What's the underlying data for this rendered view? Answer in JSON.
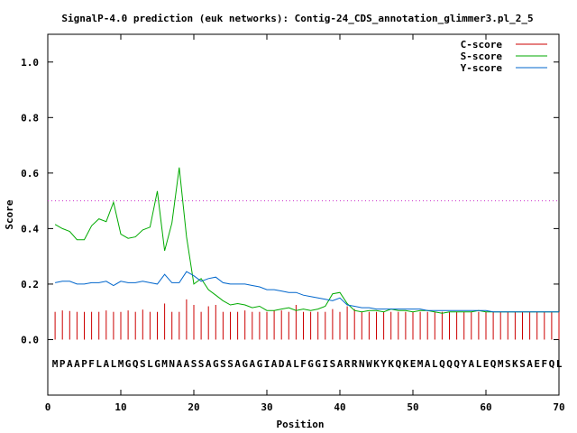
{
  "chart_data": {
    "type": "line",
    "title": "SignalP-4.0 prediction (euk networks): Contig-24_CDS_annotation_glimmer3.pl_2_5",
    "xlabel": "Position",
    "ylabel": "Score",
    "xlim": [
      0,
      70
    ],
    "ylim": [
      -0.2,
      1.1
    ],
    "x_ticks": [
      "0",
      "10",
      "20",
      "30",
      "40",
      "50",
      "60",
      "70"
    ],
    "y_ticks": [
      "0.0",
      "0.2",
      "0.4",
      "0.6",
      "0.8",
      "1.0"
    ],
    "x_tick_values": [
      0,
      10,
      20,
      30,
      40,
      50,
      60,
      70
    ],
    "y_tick_values": [
      0.0,
      0.2,
      0.4,
      0.6,
      0.8,
      1.0
    ],
    "legend_placement": "top-right",
    "threshold": 0.5,
    "threshold_color": "#cc33cc",
    "sequence": "MPAAPFLALMGQSLGMNAASSAGSSAGAGIADALFGGISARRNWKYKQKEMALQQQYALEQMSKSAEFQL",
    "series": [
      {
        "name": "C-score",
        "style": "impulse",
        "color": "#cc0000",
        "x": [
          1,
          2,
          3,
          4,
          5,
          6,
          7,
          8,
          9,
          10,
          11,
          12,
          13,
          14,
          15,
          16,
          17,
          18,
          19,
          20,
          21,
          22,
          23,
          24,
          25,
          26,
          27,
          28,
          29,
          30,
          31,
          32,
          33,
          34,
          35,
          36,
          37,
          38,
          39,
          40,
          41,
          42,
          43,
          44,
          45,
          46,
          47,
          48,
          49,
          50,
          51,
          52,
          53,
          54,
          55,
          56,
          57,
          58,
          59,
          60,
          61,
          62,
          63,
          64,
          65,
          66,
          67,
          68,
          69,
          70
        ],
        "values": [
          0.1,
          0.105,
          0.103,
          0.1,
          0.1,
          0.1,
          0.1,
          0.105,
          0.1,
          0.1,
          0.105,
          0.1,
          0.108,
          0.1,
          0.1,
          0.13,
          0.1,
          0.1,
          0.145,
          0.125,
          0.1,
          0.12,
          0.125,
          0.1,
          0.1,
          0.1,
          0.105,
          0.1,
          0.1,
          0.1,
          0.105,
          0.105,
          0.1,
          0.125,
          0.1,
          0.1,
          0.1,
          0.1,
          0.11,
          0.1,
          0.12,
          0.11,
          0.1,
          0.1,
          0.1,
          0.1,
          0.1,
          0.1,
          0.1,
          0.1,
          0.1,
          0.1,
          0.1,
          0.1,
          0.1,
          0.1,
          0.1,
          0.1,
          0.1,
          0.1,
          0.1,
          0.1,
          0.1,
          0.1,
          0.1,
          0.1,
          0.1,
          0.1,
          0.1,
          0.1
        ]
      },
      {
        "name": "S-score",
        "style": "line",
        "color": "#00aa00",
        "x": [
          1,
          2,
          3,
          4,
          5,
          6,
          7,
          8,
          9,
          10,
          11,
          12,
          13,
          14,
          15,
          16,
          17,
          18,
          19,
          20,
          21,
          22,
          23,
          24,
          25,
          26,
          27,
          28,
          29,
          30,
          31,
          32,
          33,
          34,
          35,
          36,
          37,
          38,
          39,
          40,
          41,
          42,
          43,
          44,
          45,
          46,
          47,
          48,
          49,
          50,
          51,
          52,
          53,
          54,
          55,
          56,
          57,
          58,
          59,
          60,
          61,
          62,
          63,
          64,
          65,
          66,
          67,
          68,
          69,
          70
        ],
        "values": [
          0.415,
          0.4,
          0.39,
          0.36,
          0.36,
          0.41,
          0.435,
          0.425,
          0.495,
          0.38,
          0.365,
          0.37,
          0.395,
          0.405,
          0.535,
          0.32,
          0.42,
          0.62,
          0.37,
          0.2,
          0.22,
          0.18,
          0.16,
          0.14,
          0.125,
          0.13,
          0.125,
          0.115,
          0.12,
          0.105,
          0.105,
          0.11,
          0.115,
          0.105,
          0.11,
          0.105,
          0.11,
          0.12,
          0.165,
          0.17,
          0.13,
          0.105,
          0.1,
          0.105,
          0.105,
          0.1,
          0.11,
          0.105,
          0.105,
          0.1,
          0.105,
          0.105,
          0.1,
          0.095,
          0.1,
          0.1,
          0.1,
          0.1,
          0.105,
          0.1,
          0.1,
          0.1,
          0.1,
          0.1,
          0.1,
          0.1,
          0.1,
          0.1,
          0.1,
          0.1
        ]
      },
      {
        "name": "Y-score",
        "style": "line",
        "color": "#0066cc",
        "x": [
          1,
          2,
          3,
          4,
          5,
          6,
          7,
          8,
          9,
          10,
          11,
          12,
          13,
          14,
          15,
          16,
          17,
          18,
          19,
          20,
          21,
          22,
          23,
          24,
          25,
          26,
          27,
          28,
          29,
          30,
          31,
          32,
          33,
          34,
          35,
          36,
          37,
          38,
          39,
          40,
          41,
          42,
          43,
          44,
          45,
          46,
          47,
          48,
          49,
          50,
          51,
          52,
          53,
          54,
          55,
          56,
          57,
          58,
          59,
          60,
          61,
          62,
          63,
          64,
          65,
          66,
          67,
          68,
          69,
          70
        ],
        "values": [
          0.205,
          0.21,
          0.21,
          0.2,
          0.2,
          0.205,
          0.205,
          0.21,
          0.195,
          0.21,
          0.205,
          0.205,
          0.21,
          0.205,
          0.2,
          0.235,
          0.205,
          0.205,
          0.245,
          0.23,
          0.21,
          0.22,
          0.225,
          0.205,
          0.2,
          0.2,
          0.2,
          0.195,
          0.19,
          0.18,
          0.18,
          0.175,
          0.17,
          0.17,
          0.16,
          0.155,
          0.15,
          0.145,
          0.14,
          0.15,
          0.125,
          0.12,
          0.115,
          0.115,
          0.11,
          0.11,
          0.11,
          0.11,
          0.11,
          0.11,
          0.11,
          0.105,
          0.105,
          0.105,
          0.105,
          0.105,
          0.105,
          0.105,
          0.105,
          0.105,
          0.1,
          0.1,
          0.1,
          0.1,
          0.1,
          0.1,
          0.1,
          0.1,
          0.1,
          0.1
        ]
      }
    ]
  }
}
